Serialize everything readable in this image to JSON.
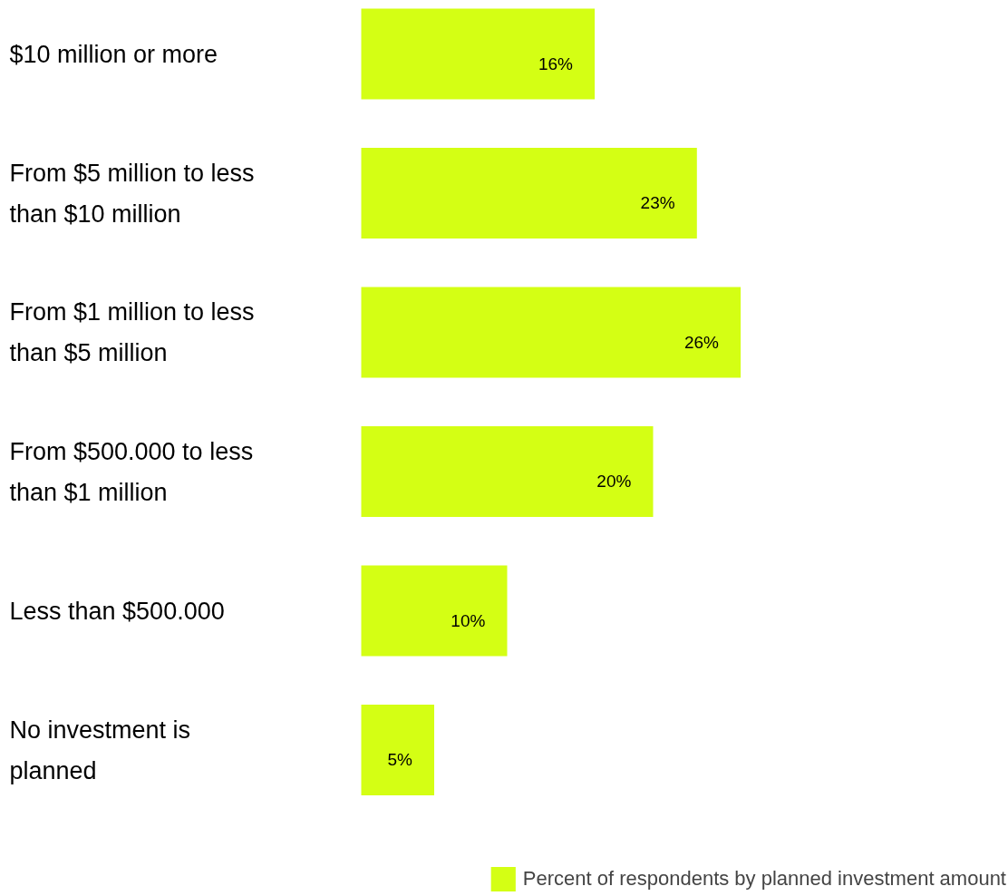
{
  "chart_data": {
    "type": "bar",
    "orientation": "horizontal",
    "categories": [
      "$10 million or more",
      "From $5 million to less than $10 million",
      "From $1 million to less than $5 million",
      "From $500.000 to less than $1 million",
      "Less than $500.000",
      "No investment is planned"
    ],
    "series": [
      {
        "name": "Percent of respondents by planned investment amount",
        "color": "#d4ff14",
        "values": [
          16,
          23,
          26,
          20,
          10,
          5
        ],
        "value_labels": [
          "16%",
          "23%",
          "26%",
          "20%",
          "10%",
          "5%"
        ]
      }
    ],
    "legend": "bottom right",
    "grid": false
  }
}
